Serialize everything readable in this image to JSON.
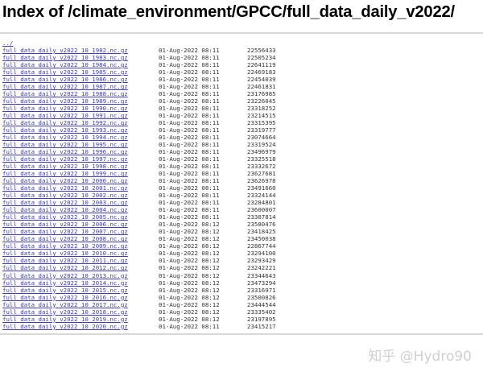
{
  "page": {
    "title": "Index of /climate_environment/GPCC/full_data_daily_v2022/",
    "parent_link": "../",
    "watermark": "知乎 @Hydro90"
  },
  "files": [
    {
      "name": "full_data_daily_v2022_10_1982.nc.gz",
      "date": "01-Aug-2022 08:11",
      "size": "22556433"
    },
    {
      "name": "full_data_daily_v2022_10_1983.nc.gz",
      "date": "01-Aug-2022 08:11",
      "size": "22505234"
    },
    {
      "name": "full_data_daily_v2022_10_1984.nc.gz",
      "date": "01-Aug-2022 08:11",
      "size": "22641119"
    },
    {
      "name": "full_data_daily_v2022_10_1985.nc.gz",
      "date": "01-Aug-2022 08:11",
      "size": "22469183"
    },
    {
      "name": "full_data_daily_v2022_10_1986.nc.gz",
      "date": "01-Aug-2022 08:11",
      "size": "22454039"
    },
    {
      "name": "full_data_daily_v2022_10_1987.nc.gz",
      "date": "01-Aug-2022 08:11",
      "size": "22461831"
    },
    {
      "name": "full_data_daily_v2022_10_1988.nc.gz",
      "date": "01-Aug-2022 08:11",
      "size": "23176985"
    },
    {
      "name": "full_data_daily_v2022_10_1989.nc.gz",
      "date": "01-Aug-2022 08:11",
      "size": "23226045"
    },
    {
      "name": "full_data_daily_v2022_10_1990.nc.gz",
      "date": "01-Aug-2022 08:11",
      "size": "23318252"
    },
    {
      "name": "full_data_daily_v2022_10_1991.nc.gz",
      "date": "01-Aug-2022 08:11",
      "size": "23214515"
    },
    {
      "name": "full_data_daily_v2022_10_1992.nc.gz",
      "date": "01-Aug-2022 08:11",
      "size": "23315395"
    },
    {
      "name": "full_data_daily_v2022_10_1993.nc.gz",
      "date": "01-Aug-2022 08:11",
      "size": "23319777"
    },
    {
      "name": "full_data_daily_v2022_10_1994.nc.gz",
      "date": "01-Aug-2022 08:11",
      "size": "23074664"
    },
    {
      "name": "full_data_daily_v2022_10_1995.nc.gz",
      "date": "01-Aug-2022 08:11",
      "size": "23319524"
    },
    {
      "name": "full_data_daily_v2022_10_1996.nc.gz",
      "date": "01-Aug-2022 08:11",
      "size": "23496979"
    },
    {
      "name": "full_data_daily_v2022_10_1997.nc.gz",
      "date": "01-Aug-2022 08:11",
      "size": "23325518"
    },
    {
      "name": "full_data_daily_v2022_10_1998.nc.gz",
      "date": "01-Aug-2022 08:11",
      "size": "23332672"
    },
    {
      "name": "full_data_daily_v2022_10_1999.nc.gz",
      "date": "01-Aug-2022 08:11",
      "size": "23627681"
    },
    {
      "name": "full_data_daily_v2022_10_2000.nc.gz",
      "date": "01-Aug-2022 08:11",
      "size": "23626978"
    },
    {
      "name": "full_data_daily_v2022_10_2001.nc.gz",
      "date": "01-Aug-2022 08:11",
      "size": "23491660"
    },
    {
      "name": "full_data_daily_v2022_10_2002.nc.gz",
      "date": "01-Aug-2022 08:11",
      "size": "23324144"
    },
    {
      "name": "full_data_daily_v2022_10_2003.nc.gz",
      "date": "01-Aug-2022 08:11",
      "size": "23284801"
    },
    {
      "name": "full_data_daily_v2022_10_2004.nc.gz",
      "date": "01-Aug-2022 08:11",
      "size": "23600007"
    },
    {
      "name": "full_data_daily_v2022_10_2005.nc.gz",
      "date": "01-Aug-2022 08:11",
      "size": "23387814"
    },
    {
      "name": "full_data_daily_v2022_10_2006.nc.gz",
      "date": "01-Aug-2022 08:12",
      "size": "23580476"
    },
    {
      "name": "full_data_daily_v2022_10_2007.nc.gz",
      "date": "01-Aug-2022 08:12",
      "size": "23418425"
    },
    {
      "name": "full_data_daily_v2022_10_2008.nc.gz",
      "date": "01-Aug-2022 08:12",
      "size": "23450038"
    },
    {
      "name": "full_data_daily_v2022_10_2009.nc.gz",
      "date": "01-Aug-2022 08:12",
      "size": "22867744"
    },
    {
      "name": "full_data_daily_v2022_10_2010.nc.gz",
      "date": "01-Aug-2022 08:12",
      "size": "23294100"
    },
    {
      "name": "full_data_daily_v2022_10_2011.nc.gz",
      "date": "01-Aug-2022 08:12",
      "size": "23293429"
    },
    {
      "name": "full_data_daily_v2022_10_2012.nc.gz",
      "date": "01-Aug-2022 08:12",
      "size": "23242221"
    },
    {
      "name": "full_data_daily_v2022_10_2013.nc.gz",
      "date": "01-Aug-2022 08:12",
      "size": "23344643"
    },
    {
      "name": "full_data_daily_v2022_10_2014.nc.gz",
      "date": "01-Aug-2022 08:12",
      "size": "23473294"
    },
    {
      "name": "full_data_daily_v2022_10_2015.nc.gz",
      "date": "01-Aug-2022 08:12",
      "size": "23316971"
    },
    {
      "name": "full_data_daily_v2022_10_2016.nc.gz",
      "date": "01-Aug-2022 08:12",
      "size": "23500826"
    },
    {
      "name": "full_data_daily_v2022_10_2017.nc.gz",
      "date": "01-Aug-2022 08:12",
      "size": "23444544"
    },
    {
      "name": "full_data_daily_v2022_10_2018.nc.gz",
      "date": "01-Aug-2022 08:12",
      "size": "23335402"
    },
    {
      "name": "full_data_daily_v2022_10_2019.nc.gz",
      "date": "01-Aug-2022 08:12",
      "size": "23197895"
    },
    {
      "name": "full_data_daily_v2022_10_2020.nc.gz",
      "date": "01-Aug-2022 08:11",
      "size": "23415217"
    }
  ]
}
